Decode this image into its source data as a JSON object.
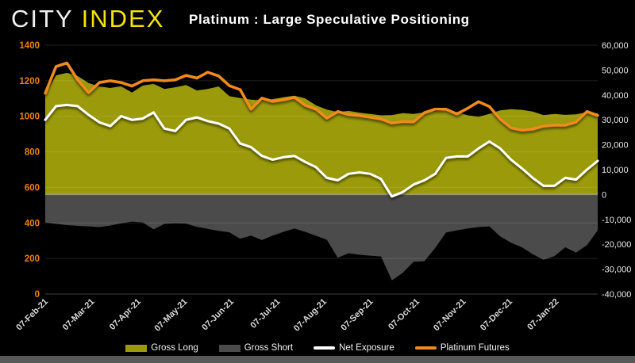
{
  "page": {
    "background": "#000000"
  },
  "header": {
    "logo": {
      "city": "CITY",
      "index": "INDEX",
      "city_color": "#EFEFEF",
      "index_color": "#F5E309"
    },
    "title": "Platinum : Large Speculative Positioning"
  },
  "footer": {
    "strip_color": "#595959"
  },
  "chart_data": {
    "type": "area",
    "title": "Platinum : Large Speculative Positioning",
    "grid": "horizontal-faint",
    "x_dates": [
      "07-Feb-21",
      "14-Feb-21",
      "21-Feb-21",
      "28-Feb-21",
      "07-Mar-21",
      "14-Mar-21",
      "21-Mar-21",
      "28-Mar-21",
      "04-Apr-21",
      "11-Apr-21",
      "18-Apr-21",
      "25-Apr-21",
      "02-May-21",
      "09-May-21",
      "16-May-21",
      "23-May-21",
      "30-May-21",
      "06-Jun-21",
      "13-Jun-21",
      "20-Jun-21",
      "27-Jun-21",
      "04-Jul-21",
      "11-Jul-21",
      "18-Jul-21",
      "25-Jul-21",
      "01-Aug-21",
      "08-Aug-21",
      "15-Aug-21",
      "22-Aug-21",
      "29-Aug-21",
      "05-Sep-21",
      "12-Sep-21",
      "19-Sep-21",
      "26-Sep-21",
      "03-Oct-21",
      "10-Oct-21",
      "17-Oct-21",
      "24-Oct-21",
      "31-Oct-21",
      "07-Nov-21",
      "14-Nov-21",
      "21-Nov-21",
      "28-Nov-21",
      "05-Dec-21",
      "12-Dec-21",
      "19-Dec-21",
      "26-Dec-21",
      "02-Jan-22",
      "09-Jan-22",
      "16-Jan-22",
      "23-Jan-22",
      "30-Jan-22"
    ],
    "x_tick_labels": [
      "07-Feb-21",
      "07-Mar-21",
      "07-Apr-21",
      "07-May-21",
      "07-Jun-21",
      "07-Jul-21",
      "07-Aug-21",
      "07-Sep-21",
      "07-Oct-21",
      "07-Nov-21",
      "07-Dec-21",
      "07-Jan-22"
    ],
    "left_axis": {
      "min": 0,
      "max": 1400,
      "step": 200,
      "labels": [
        "1400",
        "1200",
        "1000",
        "800",
        "600",
        "400",
        "200",
        "0"
      ],
      "color": "#E8820E"
    },
    "right_axis": {
      "min": -40000,
      "max": 60000,
      "step": 10000,
      "labels": [
        "60,000",
        "50,000",
        "40,000",
        "30,000",
        "20,000",
        "10,000",
        "0",
        "-10,000",
        "-20,000",
        "-30,000",
        "-40,000"
      ],
      "color": "#EAEAEA"
    },
    "x_label_color": "#D9D9D9",
    "series": [
      {
        "name": "Gross Long",
        "type": "area",
        "axis": "right",
        "color": "#9B9A0A",
        "values": [
          40300,
          47900,
          48900,
          47600,
          44800,
          43400,
          42800,
          43500,
          41000,
          43800,
          44500,
          42400,
          43100,
          44000,
          41800,
          42400,
          43400,
          39500,
          38800,
          38100,
          37800,
          38300,
          39100,
          39700,
          38600,
          35800,
          34100,
          33100,
          33600,
          32900,
          32400,
          31800,
          31900,
          32700,
          32400,
          33000,
          33500,
          33800,
          33200,
          31800,
          31200,
          32400,
          33800,
          34300,
          34000,
          33300,
          31900,
          32400,
          32000,
          32200,
          33100,
          32600
        ]
      },
      {
        "name": "Gross Short",
        "type": "area",
        "axis": "right",
        "color": "#4B4B4B",
        "values": [
          -11200,
          -11800,
          -12300,
          -12600,
          -12800,
          -13100,
          -12500,
          -11600,
          -10900,
          -11200,
          -14000,
          -11800,
          -11600,
          -11700,
          -13000,
          -13800,
          -14600,
          -15200,
          -17800,
          -16500,
          -18300,
          -16500,
          -15000,
          -13700,
          -15000,
          -16600,
          -18200,
          -25400,
          -23600,
          -24200,
          -24600,
          -24900,
          -34500,
          -31500,
          -27000,
          -26800,
          -21500,
          -15300,
          -14400,
          -13700,
          -13100,
          -12800,
          -16800,
          -19400,
          -21200,
          -24000,
          -26200,
          -24800,
          -21200,
          -23300,
          -20400,
          -14400
        ]
      },
      {
        "name": "Net Exposure",
        "type": "line",
        "axis": "right",
        "color": "#FFFFFF",
        "stroke_width": 3,
        "values": [
          30000,
          35500,
          36000,
          35500,
          32000,
          29000,
          27500,
          31500,
          30000,
          30500,
          33000,
          26500,
          25500,
          30000,
          31000,
          29500,
          28500,
          26500,
          20500,
          19000,
          15500,
          14000,
          15000,
          15500,
          13100,
          11000,
          6700,
          5700,
          8300,
          8900,
          8300,
          6200,
          -800,
          1000,
          4000,
          5700,
          8300,
          14700,
          15300,
          15300,
          18500,
          21300,
          18500,
          14000,
          10500,
          6700,
          3500,
          3500,
          6700,
          6000,
          10000,
          13500
        ]
      },
      {
        "name": "Platinum Futures",
        "type": "line",
        "axis": "left",
        "color": "#F28A1C",
        "stroke_width": 3.5,
        "values": [
          1130,
          1280,
          1300,
          1205,
          1133,
          1190,
          1200,
          1190,
          1170,
          1200,
          1205,
          1200,
          1205,
          1230,
          1215,
          1248,
          1227,
          1172,
          1150,
          1040,
          1102,
          1084,
          1093,
          1107,
          1062,
          1040,
          990,
          1027,
          1010,
          1004,
          995,
          985,
          962,
          970,
          969,
          1020,
          1040,
          1040,
          1013,
          1045,
          1082,
          1055,
          985,
          935,
          922,
          928,
          945,
          950,
          950,
          968,
          1027,
          1005
        ]
      }
    ],
    "legend": {
      "position": "bottom",
      "labels": [
        "Gross Long",
        "Gross Short",
        "Net Exposure",
        "Platinum Futures"
      ]
    }
  }
}
